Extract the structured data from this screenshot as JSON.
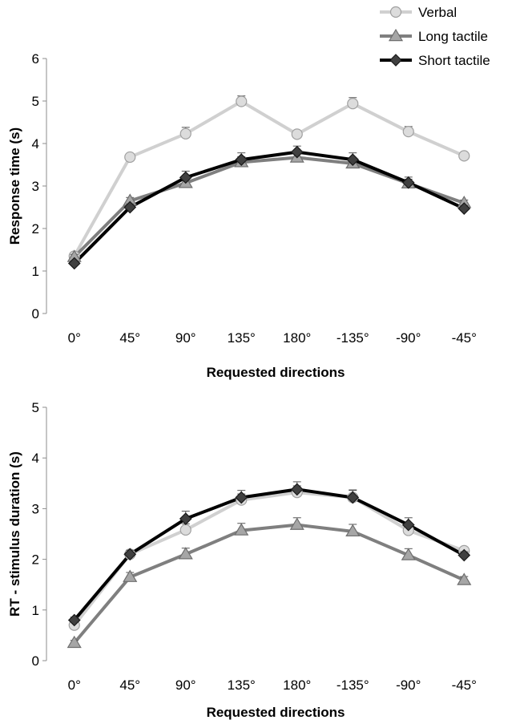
{
  "legend": {
    "position": "top-right",
    "entries": [
      {
        "label": "Verbal",
        "line_color": "#d0d0d0",
        "marker": "circle",
        "marker_fill": "#dcdcdc",
        "marker_stroke": "#a0a0a0"
      },
      {
        "label": "Long tactile",
        "line_color": "#7f7f7f",
        "marker": "triangle",
        "marker_fill": "#a6a6a6",
        "marker_stroke": "#6e6e6e"
      },
      {
        "label": "Short tactile",
        "line_color": "#000000",
        "marker": "diamond",
        "marker_fill": "#404040",
        "marker_stroke": "#1a1a1a"
      }
    ]
  },
  "chart_data": [
    {
      "type": "line",
      "title": "",
      "xlabel": "Requested directions",
      "ylabel": "Response time (s)",
      "categories": [
        "0°",
        "45°",
        "90°",
        "135°",
        "180°",
        "-135°",
        "-90°",
        "-45°"
      ],
      "ylim": [
        0,
        6
      ],
      "yticks": [
        "0",
        "1",
        "2",
        "3",
        "4",
        "5",
        "6"
      ],
      "grid": false,
      "series": [
        {
          "name": "Verbal",
          "values": [
            1.35,
            3.68,
            4.23,
            4.99,
            4.22,
            4.94,
            4.28,
            3.71
          ],
          "errors": [
            0.06,
            0.08,
            0.15,
            0.13,
            0.07,
            0.14,
            0.12,
            0.07
          ]
        },
        {
          "name": "Long tactile",
          "values": [
            1.33,
            2.65,
            3.07,
            3.56,
            3.67,
            3.53,
            3.06,
            2.6
          ],
          "errors": [
            0.06,
            0.08,
            0.1,
            0.13,
            0.12,
            0.12,
            0.1,
            0.07
          ]
        },
        {
          "name": "Short tactile",
          "values": [
            1.18,
            2.5,
            3.2,
            3.62,
            3.8,
            3.62,
            3.08,
            2.47
          ],
          "errors": [
            0.06,
            0.08,
            0.15,
            0.16,
            0.14,
            0.16,
            0.13,
            0.07
          ]
        }
      ]
    },
    {
      "type": "line",
      "title": "",
      "xlabel": "Requested directions",
      "ylabel": "RT - stimulus duration (s)",
      "categories": [
        "0°",
        "45°",
        "90°",
        "135°",
        "180°",
        "-135°",
        "-90°",
        "-45°"
      ],
      "ylim": [
        0,
        5
      ],
      "yticks": [
        "0",
        "1",
        "2",
        "3",
        "4",
        "5"
      ],
      "grid": false,
      "series": [
        {
          "name": "Verbal",
          "values": [
            0.7,
            2.1,
            2.58,
            3.17,
            3.32,
            3.22,
            2.57,
            2.17
          ],
          "errors": [
            0.06,
            0.07,
            0.12,
            0.12,
            0.13,
            0.14,
            0.12,
            0.07
          ]
        },
        {
          "name": "Long tactile",
          "values": [
            0.35,
            1.65,
            2.1,
            2.57,
            2.68,
            2.55,
            2.08,
            1.59
          ],
          "errors": [
            0.05,
            0.09,
            0.12,
            0.14,
            0.14,
            0.14,
            0.13,
            0.07
          ]
        },
        {
          "name": "Short tactile",
          "values": [
            0.8,
            2.1,
            2.8,
            3.22,
            3.38,
            3.22,
            2.68,
            2.08
          ],
          "errors": [
            0.06,
            0.08,
            0.15,
            0.14,
            0.15,
            0.15,
            0.14,
            0.07
          ]
        }
      ]
    }
  ]
}
